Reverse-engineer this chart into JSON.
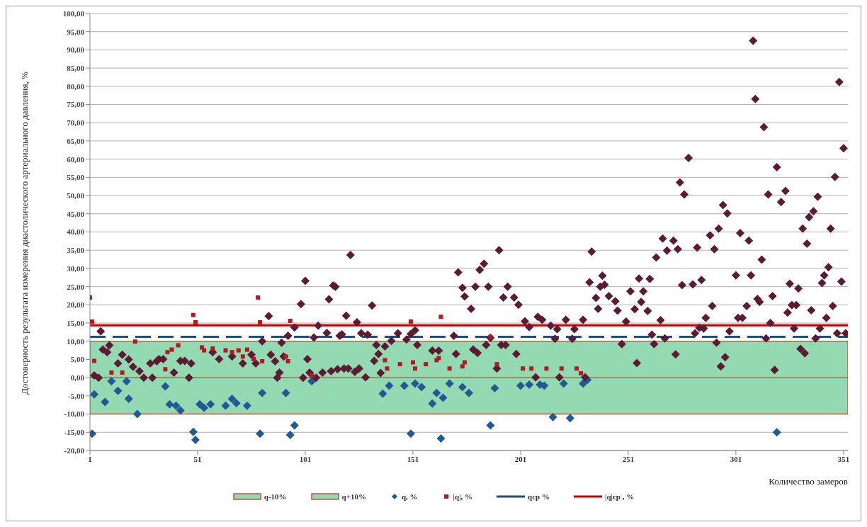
{
  "chart_data": {
    "type": "scatter",
    "ylabel": "Достоверность результата измерения диастолического артериального давления, %",
    "xlabel": "Количество замеров",
    "xlim": [
      1,
      353
    ],
    "xticks": [
      1,
      51,
      101,
      151,
      201,
      251,
      301,
      351
    ],
    "ylim": [
      -20,
      100
    ],
    "yticks": [
      {
        "value": -20,
        "label": "-20,00"
      },
      {
        "value": -15,
        "label": "-15,00"
      },
      {
        "value": -10,
        "label": "-10,00"
      },
      {
        "value": -5,
        "label": "-5,00"
      },
      {
        "value": 0,
        "label": "0,00"
      },
      {
        "value": 5,
        "label": "5,00"
      },
      {
        "value": 10,
        "label": "10,00"
      },
      {
        "value": 15,
        "label": "15,00"
      },
      {
        "value": 20,
        "label": "20,00"
      },
      {
        "value": 25,
        "label": "25,00"
      },
      {
        "value": 30,
        "label": "30,00"
      },
      {
        "value": 35,
        "label": "35,00"
      },
      {
        "value": 40,
        "label": "40,00"
      },
      {
        "value": 45,
        "label": "45,00"
      },
      {
        "value": 50,
        "label": "50,00"
      },
      {
        "value": 55,
        "label": "55,00"
      },
      {
        "value": 60,
        "label": "60,00"
      },
      {
        "value": 65,
        "label": "65,00"
      },
      {
        "value": 70,
        "label": "70,00"
      },
      {
        "value": 75,
        "label": "75,00"
      },
      {
        "value": 80,
        "label": "80,00"
      },
      {
        "value": 85,
        "label": "85,00"
      },
      {
        "value": 90,
        "label": "90,00"
      },
      {
        "value": 95,
        "label": "95,00"
      },
      {
        "value": 100,
        "label": "100,00"
      }
    ],
    "grid": "y",
    "legend": "bottom",
    "bands": [
      {
        "axis": "y",
        "from": -10,
        "to": 0,
        "label": "q-10%",
        "color": "#93d9b1"
      },
      {
        "axis": "y",
        "from": 0,
        "to": 10,
        "label": "q+10%",
        "color": "#93d9b1"
      }
    ],
    "ref_lines": [
      {
        "axis": "y",
        "value": 11.2,
        "label": "qcp %",
        "color": "#1f4e79",
        "line_style": "dashed"
      },
      {
        "axis": "y",
        "value": 14.4,
        "label": "|q|cp , %",
        "color": "#c00000",
        "line_style": "solid"
      }
    ],
    "series": [
      {
        "name": "q, %",
        "color": "#1f5a96",
        "marker": "diamond",
        "x": [
          2,
          3,
          8,
          11,
          14,
          18,
          19,
          23,
          36,
          38,
          41,
          43,
          49,
          50,
          52,
          54,
          57,
          64,
          67,
          69,
          74,
          80,
          81,
          92,
          94,
          96,
          104,
          137,
          140,
          147,
          150,
          152,
          155,
          160,
          162,
          164,
          165,
          168,
          174,
          177,
          187,
          189,
          201,
          205,
          210,
          212,
          216,
          221,
          224,
          230,
          232,
          320,
          3,
          5,
          6,
          7,
          9,
          10,
          14,
          16,
          19,
          21,
          24,
          26,
          29,
          30,
          32,
          33,
          35,
          40,
          43,
          45,
          47,
          48,
          58,
          61,
          67,
          72,
          76,
          78,
          81,
          84,
          85,
          87,
          88,
          89,
          90,
          91,
          93,
          96,
          99,
          100,
          101,
          102,
          103,
          105,
          106,
          107,
          109,
          111,
          112,
          113,
          114,
          115,
          116,
          117,
          118,
          119,
          120,
          121,
          122,
          124,
          125,
          126,
          127,
          129,
          130,
          132,
          133,
          134,
          135,
          136,
          138,
          141,
          144,
          148,
          150,
          152,
          153,
          160,
          163,
          170,
          171,
          172,
          174,
          175,
          178,
          179,
          180,
          181,
          182,
          184,
          185,
          186,
          187,
          190,
          191,
          192,
          193,
          194,
          195,
          198,
          199,
          200,
          203,
          205,
          208,
          209,
          211,
          215,
          217,
          218,
          219,
          222,
          225,
          226,
          230,
          231,
          233,
          234,
          236,
          237,
          238,
          239,
          240,
          242,
          245,
          246,
          248,
          250,
          252,
          254,
          255,
          256,
          257,
          258,
          260,
          261,
          262,
          263,
          264,
          266,
          267,
          268,
          269,
          272,
          273,
          274,
          275,
          276,
          277,
          279,
          281,
          282,
          283,
          284,
          285,
          286,
          287,
          289,
          290,
          291,
          292,
          293,
          294,
          295,
          296,
          297,
          298,
          301,
          302,
          303,
          304,
          306,
          307,
          308,
          309,
          310,
          311,
          312,
          313,
          314,
          315,
          316,
          317,
          318,
          319,
          320,
          322,
          324,
          325,
          326,
          327,
          328,
          329,
          330,
          331,
          332,
          333,
          334,
          335,
          336,
          337,
          338,
          339,
          340,
          341,
          342,
          343,
          344,
          345,
          346,
          347,
          348,
          349,
          350,
          351,
          352
        ],
        "values": [
          -15.4,
          -4.6,
          -6.7,
          -1,
          -3.6,
          -1,
          -5.8,
          -10,
          -2.4,
          -7.3,
          -7.7,
          -9,
          -14.9,
          -17.1,
          -7.3,
          -8.3,
          -7.3,
          -7.7,
          -5.8,
          -7,
          -7.7,
          -15.4,
          -4.2,
          -4.2,
          -15.7,
          -13.1,
          -1,
          -4.4,
          -2.2,
          -2.2,
          -15.4,
          -1.6,
          -2.6,
          -7.1,
          -4.2,
          -16.7,
          -5.5,
          -1.6,
          -2.6,
          -4.2,
          -13.1,
          -2.9,
          -2.2,
          -1.9,
          -1.9,
          -2.2,
          -10.8,
          -1.6,
          -11.1,
          -1.6,
          -0.6,
          -15,
          0.6,
          0,
          12.7,
          7.7,
          7,
          8.9,
          3.9,
          6.3,
          5,
          3,
          1.8,
          0,
          3.9,
          0,
          4.5,
          5.1,
          5.1,
          1.4,
          4.6,
          4.6,
          0,
          3.9,
          7,
          5.1,
          5.8,
          3.9,
          6.3,
          3.9,
          10,
          16.9,
          6.3,
          4.5,
          0,
          1.4,
          9.6,
          5.8,
          11.5,
          13.8,
          20.2,
          0,
          26.6,
          5.1,
          1.4,
          11,
          0,
          14.3,
          1.4,
          12.3,
          21.5,
          1.8,
          25.3,
          25,
          2.3,
          11.5,
          11.9,
          2.5,
          17,
          2.5,
          33.7,
          1.6,
          15.2,
          2.5,
          12.2,
          0.1,
          11.8,
          19.8,
          4.6,
          9,
          6.5,
          1.3,
          8.6,
          10.1,
          12.2,
          10.5,
          12,
          13,
          9,
          7.4,
          7.4,
          11.5,
          6.5,
          28.9,
          24.7,
          22.3,
          18.9,
          7.7,
          25,
          6.8,
          29.6,
          31.3,
          9,
          25,
          10.9,
          2.5,
          35,
          9,
          22,
          9,
          25,
          22,
          6.5,
          20,
          15.5,
          13.9,
          0.1,
          16.7,
          15.9,
          14.3,
          10.7,
          13.3,
          0.1,
          15.9,
          10.7,
          13.3,
          15.9,
          0.1,
          26.2,
          34.6,
          21.9,
          18.9,
          25,
          28,
          25.5,
          22.4,
          21,
          18.4,
          9.2,
          15.4,
          23.7,
          18.8,
          4,
          27.2,
          20.8,
          23.7,
          18.3,
          27.1,
          11.8,
          9.2,
          33,
          15.8,
          38.2,
          10.8,
          34.9,
          37.6,
          6.4,
          35.3,
          53.6,
          25.4,
          50.3,
          60.3,
          25.6,
          12.2,
          35.7,
          13.7,
          26.8,
          13.5,
          16.4,
          39.1,
          19.7,
          35.3,
          9.6,
          40.9,
          3.1,
          47.4,
          5.6,
          45.1,
          12.7,
          28.1,
          16.4,
          39.7,
          16.4,
          19.7,
          37.6,
          28.1,
          92.5,
          76.5,
          21.6,
          20.8,
          32.4,
          68.8,
          10.8,
          50.3,
          15,
          22.4,
          2.1,
          57.8,
          48.2,
          51.3,
          17.9,
          25.8,
          19.9,
          13.5,
          19.9,
          24.5,
          7.9,
          40.9,
          6.7,
          36.8,
          44.1,
          18.5,
          45.7,
          10.8,
          49.7,
          13.5,
          26,
          28.1,
          16.4,
          30.3,
          40.9,
          19.7,
          55.1,
          12.2,
          81.2,
          26.4,
          63,
          12.2
        ],
        "colors": [
          "#1f5a96",
          "#1f5a96",
          "#1f5a96",
          "#1f5a96",
          "#1f5a96",
          "#1f5a96",
          "#1f5a96",
          "#1f5a96",
          "#1f5a96",
          "#1f5a96",
          "#1f5a96",
          "#1f5a96",
          "#1f5a96",
          "#1f5a96",
          "#1f5a96",
          "#1f5a96",
          "#1f5a96",
          "#1f5a96",
          "#1f5a96",
          "#1f5a96",
          "#1f5a96",
          "#1f5a96",
          "#1f5a96",
          "#1f5a96",
          "#1f5a96",
          "#1f5a96",
          "#1f5a96",
          "#1f5a96",
          "#1f5a96",
          "#1f5a96",
          "#1f5a96",
          "#1f5a96",
          "#1f5a96",
          "#1f5a96",
          "#1f5a96",
          "#1f5a96",
          "#1f5a96",
          "#1f5a96",
          "#1f5a96",
          "#1f5a96",
          "#1f5a96",
          "#1f5a96",
          "#1f5a96",
          "#1f5a96",
          "#1f5a96",
          "#1f5a96",
          "#1f5a96",
          "#1f5a96",
          "#1f5a96",
          "#1f5a96",
          "#1f5a96",
          "#1f5a96",
          "#5c1a33",
          "#5c1a33",
          "#5c1a33",
          "#5c1a33",
          "#5c1a33",
          "#5c1a33",
          "#5c1a33",
          "#5c1a33",
          "#5c1a33",
          "#5c1a33",
          "#5c1a33",
          "#5c1a33",
          "#5c1a33",
          "#5c1a33",
          "#5c1a33",
          "#5c1a33",
          "#5c1a33",
          "#5c1a33",
          "#5c1a33",
          "#5c1a33",
          "#5c1a33",
          "#5c1a33",
          "#5c1a33",
          "#5c1a33",
          "#5c1a33",
          "#5c1a33",
          "#5c1a33",
          "#5c1a33",
          "#5c1a33",
          "#5c1a33",
          "#5c1a33",
          "#5c1a33",
          "#5c1a33",
          "#5c1a33",
          "#5c1a33",
          "#5c1a33",
          "#5c1a33",
          "#5c1a33",
          "#5c1a33",
          "#5c1a33",
          "#5c1a33",
          "#5c1a33",
          "#5c1a33",
          "#5c1a33",
          "#5c1a33",
          "#5c1a33",
          "#5c1a33",
          "#5c1a33",
          "#5c1a33",
          "#5c1a33",
          "#5c1a33",
          "#5c1a33",
          "#5c1a33",
          "#5c1a33",
          "#5c1a33",
          "#5c1a33",
          "#5c1a33",
          "#5c1a33",
          "#5c1a33",
          "#5c1a33",
          "#5c1a33",
          "#5c1a33",
          "#5c1a33",
          "#5c1a33",
          "#5c1a33",
          "#5c1a33",
          "#5c1a33",
          "#5c1a33",
          "#5c1a33",
          "#5c1a33",
          "#5c1a33",
          "#5c1a33",
          "#5c1a33",
          "#5c1a33",
          "#5c1a33",
          "#5c1a33",
          "#5c1a33",
          "#5c1a33",
          "#5c1a33",
          "#5c1a33",
          "#5c1a33",
          "#5c1a33",
          "#5c1a33",
          "#5c1a33",
          "#5c1a33",
          "#5c1a33",
          "#5c1a33",
          "#5c1a33",
          "#5c1a33",
          "#5c1a33",
          "#5c1a33",
          "#5c1a33",
          "#5c1a33",
          "#5c1a33",
          "#5c1a33",
          "#5c1a33",
          "#5c1a33",
          "#5c1a33",
          "#5c1a33",
          "#5c1a33",
          "#5c1a33",
          "#5c1a33",
          "#5c1a33",
          "#5c1a33",
          "#5c1a33",
          "#5c1a33",
          "#5c1a33",
          "#5c1a33",
          "#5c1a33",
          "#5c1a33",
          "#5c1a33",
          "#5c1a33",
          "#5c1a33",
          "#5c1a33",
          "#5c1a33",
          "#5c1a33",
          "#5c1a33",
          "#5c1a33",
          "#5c1a33",
          "#5c1a33",
          "#5c1a33",
          "#5c1a33",
          "#5c1a33",
          "#5c1a33",
          "#5c1a33",
          "#5c1a33",
          "#5c1a33",
          "#5c1a33",
          "#5c1a33",
          "#5c1a33",
          "#5c1a33",
          "#5c1a33",
          "#5c1a33",
          "#5c1a33",
          "#5c1a33",
          "#5c1a33",
          "#5c1a33",
          "#5c1a33",
          "#5c1a33",
          "#5c1a33",
          "#5c1a33",
          "#5c1a33",
          "#5c1a33",
          "#5c1a33",
          "#5c1a33",
          "#5c1a33",
          "#5c1a33",
          "#5c1a33",
          "#5c1a33",
          "#5c1a33",
          "#5c1a33",
          "#5c1a33",
          "#5c1a33",
          "#5c1a33",
          "#5c1a33",
          "#5c1a33",
          "#5c1a33",
          "#5c1a33",
          "#5c1a33",
          "#5c1a33",
          "#5c1a33",
          "#5c1a33",
          "#5c1a33",
          "#5c1a33",
          "#5c1a33",
          "#5c1a33",
          "#5c1a33",
          "#5c1a33",
          "#5c1a33",
          "#5c1a33",
          "#5c1a33",
          "#5c1a33",
          "#5c1a33",
          "#5c1a33",
          "#5c1a33",
          "#5c1a33",
          "#5c1a33",
          "#5c1a33",
          "#5c1a33",
          "#5c1a33",
          "#5c1a33",
          "#5c1a33",
          "#5c1a33",
          "#5c1a33",
          "#5c1a33",
          "#5c1a33",
          "#5c1a33",
          "#5c1a33",
          "#5c1a33",
          "#5c1a33",
          "#5c1a33",
          "#5c1a33",
          "#5c1a33",
          "#5c1a33",
          "#5c1a33",
          "#5c1a33",
          "#5c1a33",
          "#5c1a33",
          "#5c1a33",
          "#5c1a33",
          "#5c1a33",
          "#5c1a33",
          "#5c1a33",
          "#5c1a33",
          "#5c1a33",
          "#5c1a33",
          "#5c1a33",
          "#5c1a33",
          "#5c1a33",
          "#5c1a33",
          "#5c1a33",
          "#5c1a33",
          "#5c1a33",
          "#5c1a33",
          "#5c1a33",
          "#5c1a33"
        ]
      },
      {
        "name": "|q|, %",
        "color": "#b3191f",
        "marker": "square",
        "x": [
          1,
          2,
          3,
          11,
          16,
          22,
          36,
          37,
          39,
          42,
          49,
          50,
          53,
          54,
          58,
          64,
          67,
          70,
          72,
          74,
          77,
          79,
          80,
          81,
          92,
          93,
          94,
          104,
          138,
          139,
          145,
          150,
          151,
          152,
          157,
          162,
          163,
          164,
          168,
          174,
          175,
          187,
          190,
          202,
          206,
          213,
          220,
          227,
          229
        ],
        "values": [
          22,
          15.4,
          4.6,
          1.4,
          1.4,
          9.9,
          2.3,
          7,
          7.7,
          8.9,
          17.2,
          15.2,
          8.3,
          7.5,
          8,
          7.5,
          7,
          7.5,
          5.8,
          7.7,
          5.1,
          22,
          15.2,
          4.5,
          5.8,
          4.5,
          15.6,
          0.6,
          4.8,
          2.5,
          3.7,
          15.4,
          4.2,
          2.5,
          3.7,
          4.8,
          5.4,
          16.7,
          2.5,
          3.1,
          4.2,
          11.2,
          3.7,
          2.5,
          2.5,
          2.5,
          2.5,
          2.5,
          1.2
        ]
      }
    ]
  }
}
